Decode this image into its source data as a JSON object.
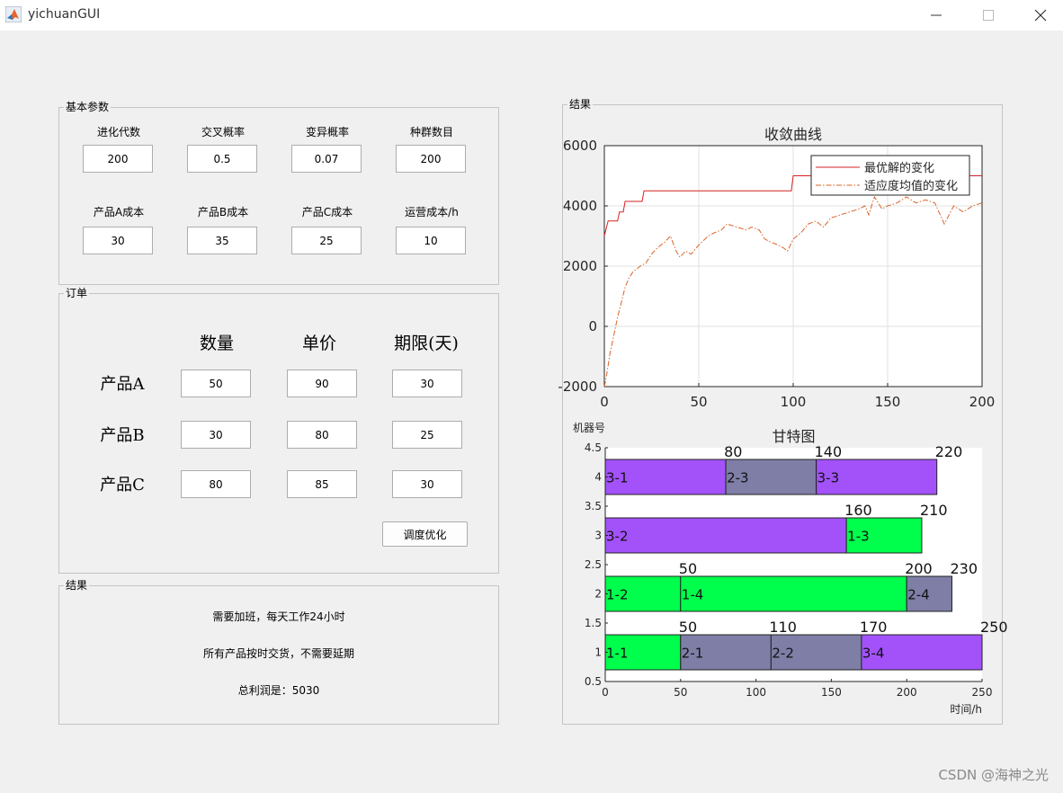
{
  "window": {
    "title": "yichuanGUI"
  },
  "params": {
    "title": "基本参数",
    "row1": [
      {
        "label": "进化代数",
        "value": "200"
      },
      {
        "label": "交叉概率",
        "value": "0.5"
      },
      {
        "label": "变异概率",
        "value": "0.07"
      },
      {
        "label": "种群数目",
        "value": "200"
      }
    ],
    "row2": [
      {
        "label": "产品A成本",
        "value": "30"
      },
      {
        "label": "产品B成本",
        "value": "35"
      },
      {
        "label": "产品C成本",
        "value": "25"
      },
      {
        "label": "运营成本/h",
        "value": "10"
      }
    ]
  },
  "orders": {
    "title": "订单",
    "headers": [
      "数量",
      "单价",
      "期限(天)"
    ],
    "rows": [
      {
        "label": "产品A",
        "values": [
          "50",
          "90",
          "30"
        ]
      },
      {
        "label": "产品B",
        "values": [
          "30",
          "80",
          "25"
        ]
      },
      {
        "label": "产品C",
        "values": [
          "80",
          "85",
          "30"
        ]
      }
    ],
    "button": "调度优化"
  },
  "result_left": {
    "title": "结果",
    "lines": [
      "需要加班，每天工作24小时",
      "所有产品按时交货，不需要延期",
      "总利润是：5030"
    ]
  },
  "result_right": {
    "title": "结果"
  },
  "chart_data": [
    {
      "type": "line",
      "title": "收敛曲线",
      "xlim": [
        0,
        200
      ],
      "ylim": [
        -2000,
        6000
      ],
      "xticks": [
        "0",
        "50",
        "100",
        "150",
        "200"
      ],
      "yticks": [
        "6000",
        "4000",
        "2000",
        "0",
        "-2000"
      ],
      "grid": true,
      "legend_position": "top-right",
      "series": [
        {
          "name": "最优解的变化",
          "color": "#d62020",
          "style": "solid",
          "points": [
            [
              0,
              3000
            ],
            [
              2,
              3500
            ],
            [
              7,
              3500
            ],
            [
              8,
              3800
            ],
            [
              10,
              3800
            ],
            [
              11,
              4150
            ],
            [
              20,
              4150
            ],
            [
              21,
              4500
            ],
            [
              99,
              4500
            ],
            [
              100,
              5000
            ],
            [
              200,
              5000
            ]
          ]
        },
        {
          "name": "适应度均值的变化",
          "color": "#d9652a",
          "style": "dashdot",
          "points": [
            [
              0,
              -2000
            ],
            [
              1,
              -1700
            ],
            [
              3,
              -900
            ],
            [
              5,
              -300
            ],
            [
              7,
              300
            ],
            [
              9,
              800
            ],
            [
              11,
              1300
            ],
            [
              13,
              1600
            ],
            [
              15,
              1800
            ],
            [
              17,
              1900
            ],
            [
              19,
              2000
            ],
            [
              22,
              2100
            ],
            [
              25,
              2400
            ],
            [
              28,
              2600
            ],
            [
              32,
              2800
            ],
            [
              35,
              3000
            ],
            [
              38,
              2500
            ],
            [
              40,
              2300
            ],
            [
              43,
              2500
            ],
            [
              46,
              2400
            ],
            [
              50,
              2700
            ],
            [
              55,
              3000
            ],
            [
              58,
              3100
            ],
            [
              62,
              3200
            ],
            [
              65,
              3400
            ],
            [
              70,
              3300
            ],
            [
              75,
              3200
            ],
            [
              78,
              3300
            ],
            [
              82,
              3200
            ],
            [
              85,
              2900
            ],
            [
              88,
              2800
            ],
            [
              92,
              2700
            ],
            [
              95,
              2600
            ],
            [
              97,
              2500
            ],
            [
              100,
              2900
            ],
            [
              104,
              3100
            ],
            [
              108,
              3400
            ],
            [
              112,
              3500
            ],
            [
              116,
              3300
            ],
            [
              120,
              3600
            ],
            [
              125,
              3700
            ],
            [
              130,
              3800
            ],
            [
              135,
              3900
            ],
            [
              138,
              4000
            ],
            [
              140,
              3700
            ],
            [
              143,
              4300
            ],
            [
              147,
              3900
            ],
            [
              150,
              4000
            ],
            [
              155,
              4100
            ],
            [
              160,
              4300
            ],
            [
              165,
              4100
            ],
            [
              170,
              4200
            ],
            [
              175,
              4100
            ],
            [
              180,
              3400
            ],
            [
              185,
              4000
            ],
            [
              190,
              3800
            ],
            [
              195,
              4000
            ],
            [
              200,
              4100
            ]
          ]
        }
      ]
    },
    {
      "type": "gantt",
      "title": "甘特图",
      "ylabel": "机器号",
      "xlabel": "时间/h",
      "xlim": [
        0,
        250
      ],
      "ylim": [
        0.5,
        4.5
      ],
      "xticks": [
        "0",
        "50",
        "100",
        "150",
        "200",
        "250"
      ],
      "yticks": [
        "4.5",
        "4",
        "3.5",
        "3",
        "2.5",
        "2",
        "1.5",
        "1",
        "0.5"
      ],
      "colors": {
        "green": "#00ff4c",
        "purple": "#a352fa",
        "gray": "#7e7ea7"
      },
      "tasks": [
        {
          "machine": 4,
          "start": 0,
          "end": 80,
          "label": "3-1",
          "color": "purple"
        },
        {
          "machine": 4,
          "start": 80,
          "end": 140,
          "label": "2-3",
          "color": "gray"
        },
        {
          "machine": 4,
          "start": 140,
          "end": 220,
          "label": "3-3",
          "color": "purple"
        },
        {
          "machine": 3,
          "start": 0,
          "end": 160,
          "label": "3-2",
          "color": "purple"
        },
        {
          "machine": 3,
          "start": 160,
          "end": 210,
          "label": "1-3",
          "color": "green"
        },
        {
          "machine": 2,
          "start": 0,
          "end": 50,
          "label": "1-2",
          "color": "green"
        },
        {
          "machine": 2,
          "start": 50,
          "end": 200,
          "label": "1-4",
          "color": "green"
        },
        {
          "machine": 2,
          "start": 200,
          "end": 230,
          "label": "2-4",
          "color": "gray"
        },
        {
          "machine": 1,
          "start": 0,
          "end": 50,
          "label": "1-1",
          "color": "green"
        },
        {
          "machine": 1,
          "start": 50,
          "end": 110,
          "label": "2-1",
          "color": "gray"
        },
        {
          "machine": 1,
          "start": 110,
          "end": 170,
          "label": "2-2",
          "color": "gray"
        },
        {
          "machine": 1,
          "start": 170,
          "end": 250,
          "label": "3-4",
          "color": "purple"
        }
      ],
      "end_labels": [
        {
          "machine": 4,
          "labels": [
            "80",
            "140",
            "220"
          ]
        },
        {
          "machine": 3,
          "labels": [
            "160",
            "210"
          ]
        },
        {
          "machine": 2,
          "labels": [
            "50",
            "200",
            "230"
          ]
        },
        {
          "machine": 1,
          "labels": [
            "50",
            "110",
            "170",
            "250"
          ]
        }
      ]
    }
  ],
  "watermark": "CSDN @海神之光"
}
